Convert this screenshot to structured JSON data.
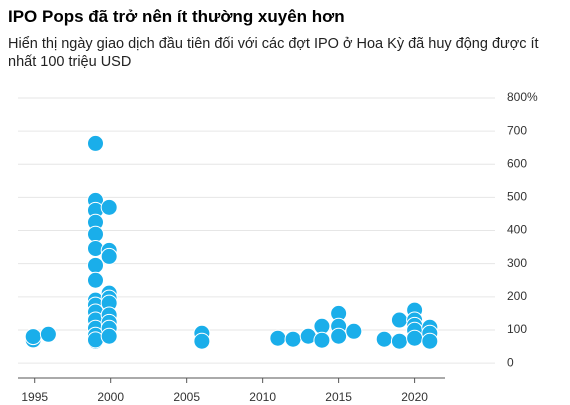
{
  "chart_data": {
    "type": "scatter",
    "title": "IPO Pops đã trở nên ít thường xuyên hơn",
    "subtitle": "Hiển thị ngày giao dịch đầu tiên đối với các đợt IPO ở Hoa Kỳ đã huy động được ít nhất 100 triệu USD",
    "series": [
      {
        "color": "#1aaeea",
        "x": [
          1994.9,
          1994.9,
          1995.9,
          1999,
          1999,
          1999,
          1999,
          1999,
          1999,
          1999,
          1999,
          1999,
          1999,
          1999,
          1999,
          1999,
          1999,
          1999,
          1999,
          1999.9,
          1999.9,
          1999.9,
          1999.9,
          1999.9,
          1999.9,
          1999.9,
          1999.9,
          1999.9,
          1999.9,
          2006,
          2006,
          2011,
          2012,
          2013,
          2013.9,
          2013.9,
          2015,
          2015,
          2015,
          2016,
          2018,
          2019,
          2019,
          2020,
          2020,
          2020,
          2020,
          2020,
          2021,
          2021,
          2021
        ],
        "values": [
          70,
          80,
          87,
          663,
          491,
          461,
          425,
          389,
          346,
          295,
          250,
          190,
          175,
          154,
          130,
          105,
          84,
          66,
          70,
          470,
          340,
          322,
          211,
          196,
          181,
          145,
          123,
          105,
          81,
          90,
          66,
          75,
          72,
          81,
          111,
          69,
          150,
          111,
          81,
          96,
          72,
          130,
          66,
          160,
          130,
          114,
          99,
          75,
          108,
          90,
          66
        ]
      }
    ],
    "xlim": [
      1993.9,
      2022.0
    ],
    "xticks": [
      1995,
      2000,
      2005,
      2010,
      2015,
      2020
    ],
    "ylim": [
      -45,
      800
    ],
    "yticks": [
      0,
      100,
      200,
      300,
      400,
      500,
      600,
      700,
      {
        "value": 800,
        "label": "800%"
      }
    ],
    "grid": true
  }
}
